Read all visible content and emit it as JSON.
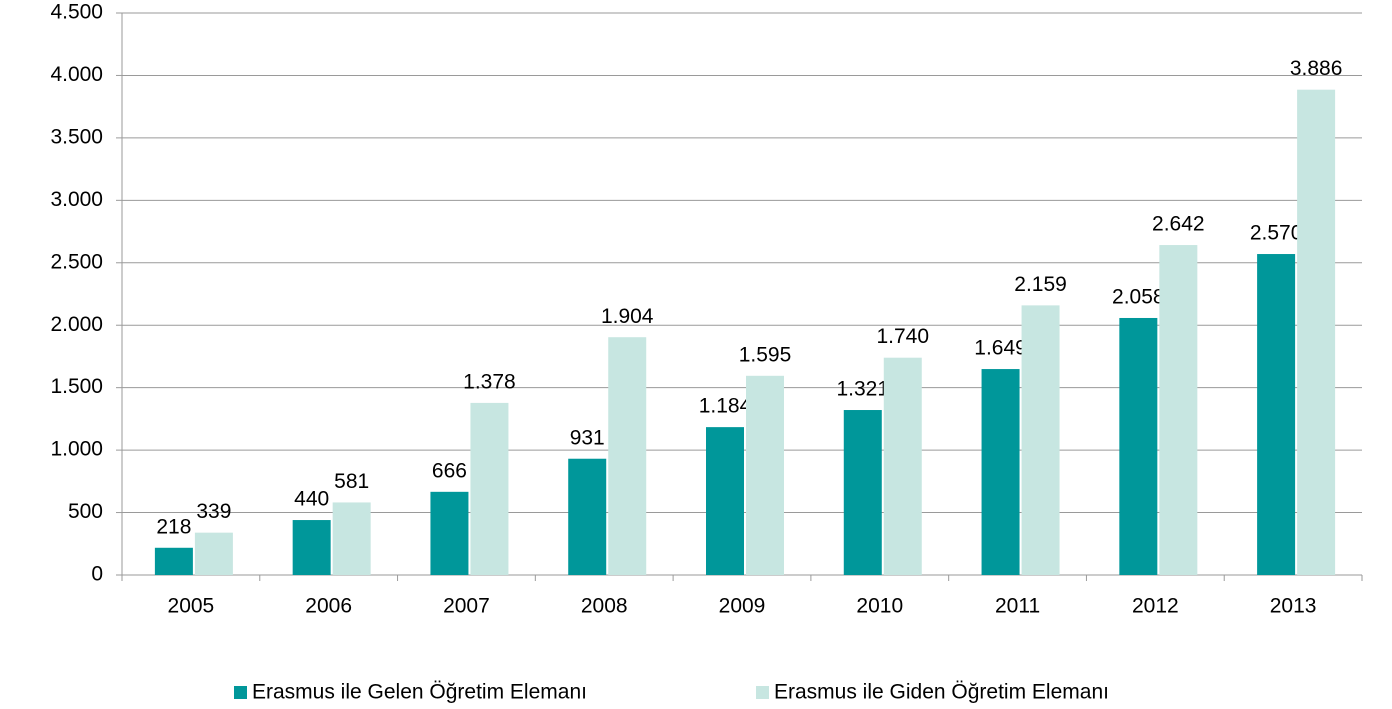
{
  "chart_data": {
    "type": "bar",
    "categories": [
      "2005",
      "2006",
      "2007",
      "2008",
      "2009",
      "2010",
      "2011",
      "2012",
      "2013"
    ],
    "series": [
      {
        "name": "Erasmus ile Gelen Öğretim Elemanı",
        "color": "#00979a",
        "values": [
          218,
          440,
          666,
          931,
          1184,
          1321,
          1649,
          2058,
          2570
        ],
        "value_labels": [
          "218",
          "440",
          "666",
          "931",
          "1.184",
          "1.321",
          "1.649",
          "2.058",
          "2.570"
        ]
      },
      {
        "name": "Erasmus ile Giden Öğretim Elemanı",
        "color": "#c7e6e1",
        "values": [
          339,
          581,
          1378,
          1904,
          1595,
          1740,
          2159,
          2642,
          3886
        ],
        "value_labels": [
          "339",
          "581",
          "1.378",
          "1.904",
          "1.595",
          "1.740",
          "2.159",
          "2.642",
          "3.886"
        ]
      }
    ],
    "ylim": [
      0,
      4500
    ],
    "yticks": [
      0,
      500,
      {
        "value": 1000,
        "label": "1.000"
      },
      {
        "value": 1500,
        "label": "1.500"
      },
      {
        "value": 2000,
        "label": "2.000"
      },
      {
        "value": 2500,
        "label": "2.500"
      },
      {
        "value": 3000,
        "label": "3.000"
      },
      {
        "value": 3500,
        "label": "3.500"
      },
      {
        "value": 4000,
        "label": "4.000"
      },
      {
        "value": 4500,
        "label": "4.500"
      }
    ],
    "grid": true,
    "legend": "bottom"
  }
}
